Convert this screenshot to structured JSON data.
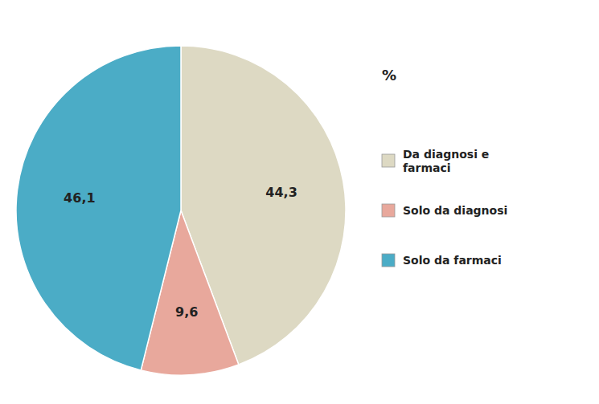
{
  "chart_data": {
    "type": "pie",
    "title": "%",
    "categories": [
      "Da diagnosi e\nfarmaci",
      "Solo da diagnosi",
      "Solo da farmaci"
    ],
    "values": [
      44.3,
      9.6,
      46.1
    ],
    "value_labels": [
      "44,3",
      "9,6",
      "46,1"
    ],
    "colors": [
      "#ddd9c3",
      "#e8a89c",
      "#4bacc6"
    ],
    "data_labels": true,
    "legend": "right"
  }
}
